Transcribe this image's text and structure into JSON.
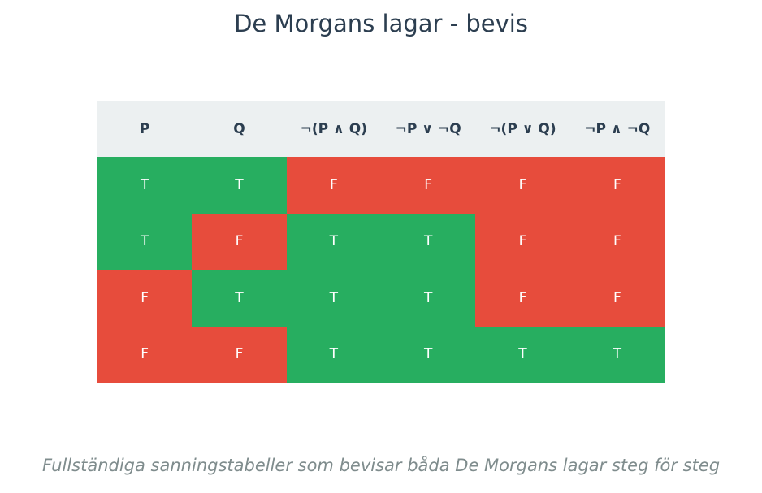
{
  "chart_data": {
    "type": "table",
    "title": "De Morgans lagar - bevis",
    "caption": "Fullständiga sanningstabeller som bevisar båda De Morgans lagar steg för steg",
    "columns": [
      "P",
      "Q",
      "¬(P ∧ Q)",
      "¬P ∨ ¬Q",
      "¬(P ∨ Q)",
      "¬P ∧ ¬Q"
    ],
    "rows": [
      [
        "T",
        "T",
        "F",
        "F",
        "F",
        "F"
      ],
      [
        "T",
        "F",
        "T",
        "T",
        "F",
        "F"
      ],
      [
        "F",
        "T",
        "T",
        "T",
        "F",
        "F"
      ],
      [
        "F",
        "F",
        "T",
        "T",
        "T",
        "T"
      ]
    ],
    "colors": {
      "T": "#27ae60",
      "F": "#e74c3c",
      "header_bg": "#ecf0f1",
      "header_text": "#2c3e50",
      "title": "#2c3e50",
      "caption": "#7f8c8d"
    }
  }
}
